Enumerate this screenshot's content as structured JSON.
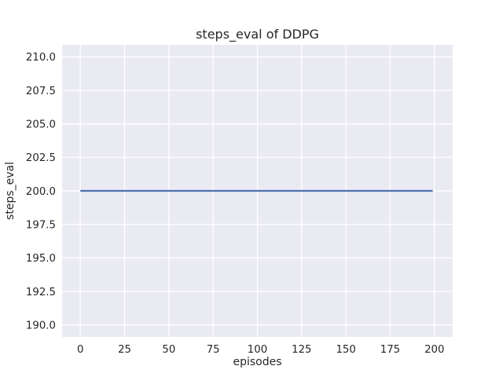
{
  "chart_data": {
    "type": "line",
    "title": "steps_eval of DDPG",
    "xlabel": "episodes",
    "ylabel": "steps_eval",
    "x_ticks": [
      0,
      25,
      50,
      75,
      100,
      125,
      150,
      175,
      200
    ],
    "x_tick_labels": [
      "0",
      "25",
      "50",
      "75",
      "100",
      "125",
      "150",
      "175",
      "200"
    ],
    "y_ticks": [
      190.0,
      192.5,
      195.0,
      197.5,
      200.0,
      202.5,
      205.0,
      207.5,
      210.0
    ],
    "y_tick_labels": [
      "190.0",
      "192.5",
      "195.0",
      "197.5",
      "200.0",
      "202.5",
      "205.0",
      "207.5",
      "210.0"
    ],
    "xlim": [
      -10.3,
      210.3
    ],
    "ylim": [
      189.1,
      210.9
    ],
    "grid": true,
    "legend_visible": false,
    "series": [
      {
        "name": "DDPG",
        "color": "#4c72b0",
        "x": [
          0,
          199
        ],
        "y": [
          200,
          200
        ]
      }
    ],
    "style": {
      "figure_bg": "#ffffff",
      "panel_bg": "#eaeaf2",
      "grid_color": "#ffffff",
      "text_color": "#262626",
      "line_width": 2.2
    }
  }
}
